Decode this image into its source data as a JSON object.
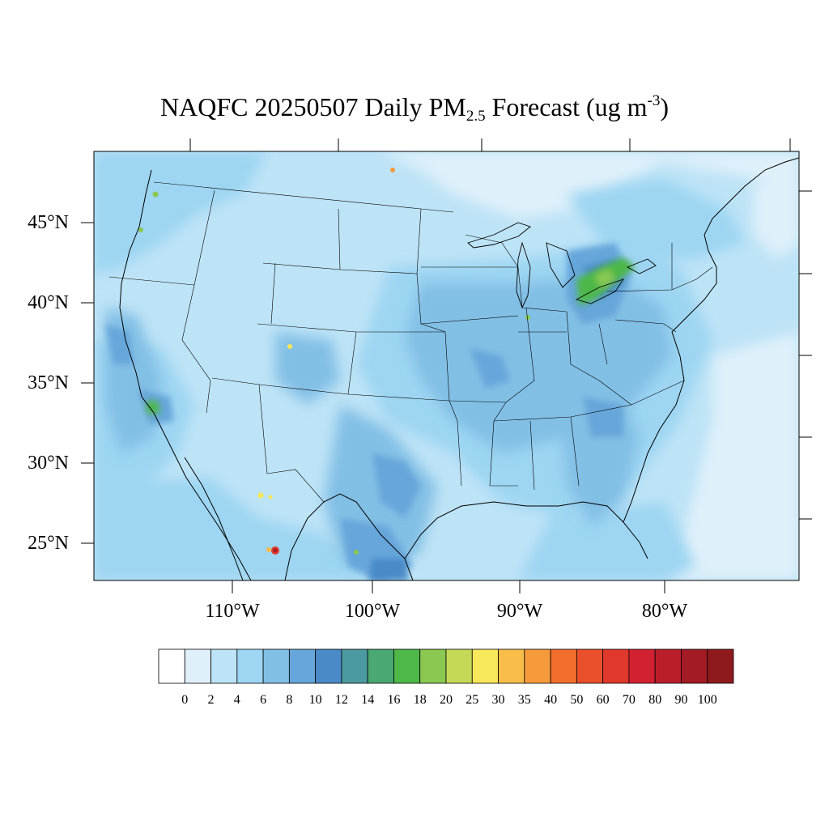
{
  "title": {
    "prefix": "NAQFC 20250507 Daily PM",
    "subscript": "2.5",
    "middle": " Forecast (ug m",
    "superscript": "-3",
    "suffix": ")"
  },
  "lat_labels": [
    "45°N",
    "40°N",
    "35°N",
    "30°N",
    "25°N"
  ],
  "lon_labels": [
    "110°W",
    "100°W",
    "90°W",
    "80°W"
  ],
  "colorbar": {
    "labels": [
      "0",
      "2",
      "4",
      "6",
      "8",
      "10",
      "12",
      "14",
      "16",
      "18",
      "20",
      "25",
      "30",
      "35",
      "40",
      "50",
      "60",
      "70",
      "80",
      "90",
      "100"
    ],
    "colors": [
      "#ffffff",
      "#dff0fa",
      "#bde3f6",
      "#9dd5f2",
      "#82bfe5",
      "#66a6da",
      "#4a8ac7",
      "#4b9a9f",
      "#4aa873",
      "#4eb848",
      "#8ac852",
      "#c6d957",
      "#f7e75a",
      "#f8be49",
      "#f69b3c",
      "#f26e2d",
      "#e9502b",
      "#e0382a",
      "#d22130",
      "#bb1e2b",
      "#a31b25",
      "#8e1a1e"
    ]
  },
  "legend_color_by_concentration": {
    "background_low": "#dff0fa",
    "moderate": "#9dd5f2",
    "elevated": "#66a6da",
    "high_green": "#4eb848",
    "hotspot_red": "#e0382a"
  }
}
